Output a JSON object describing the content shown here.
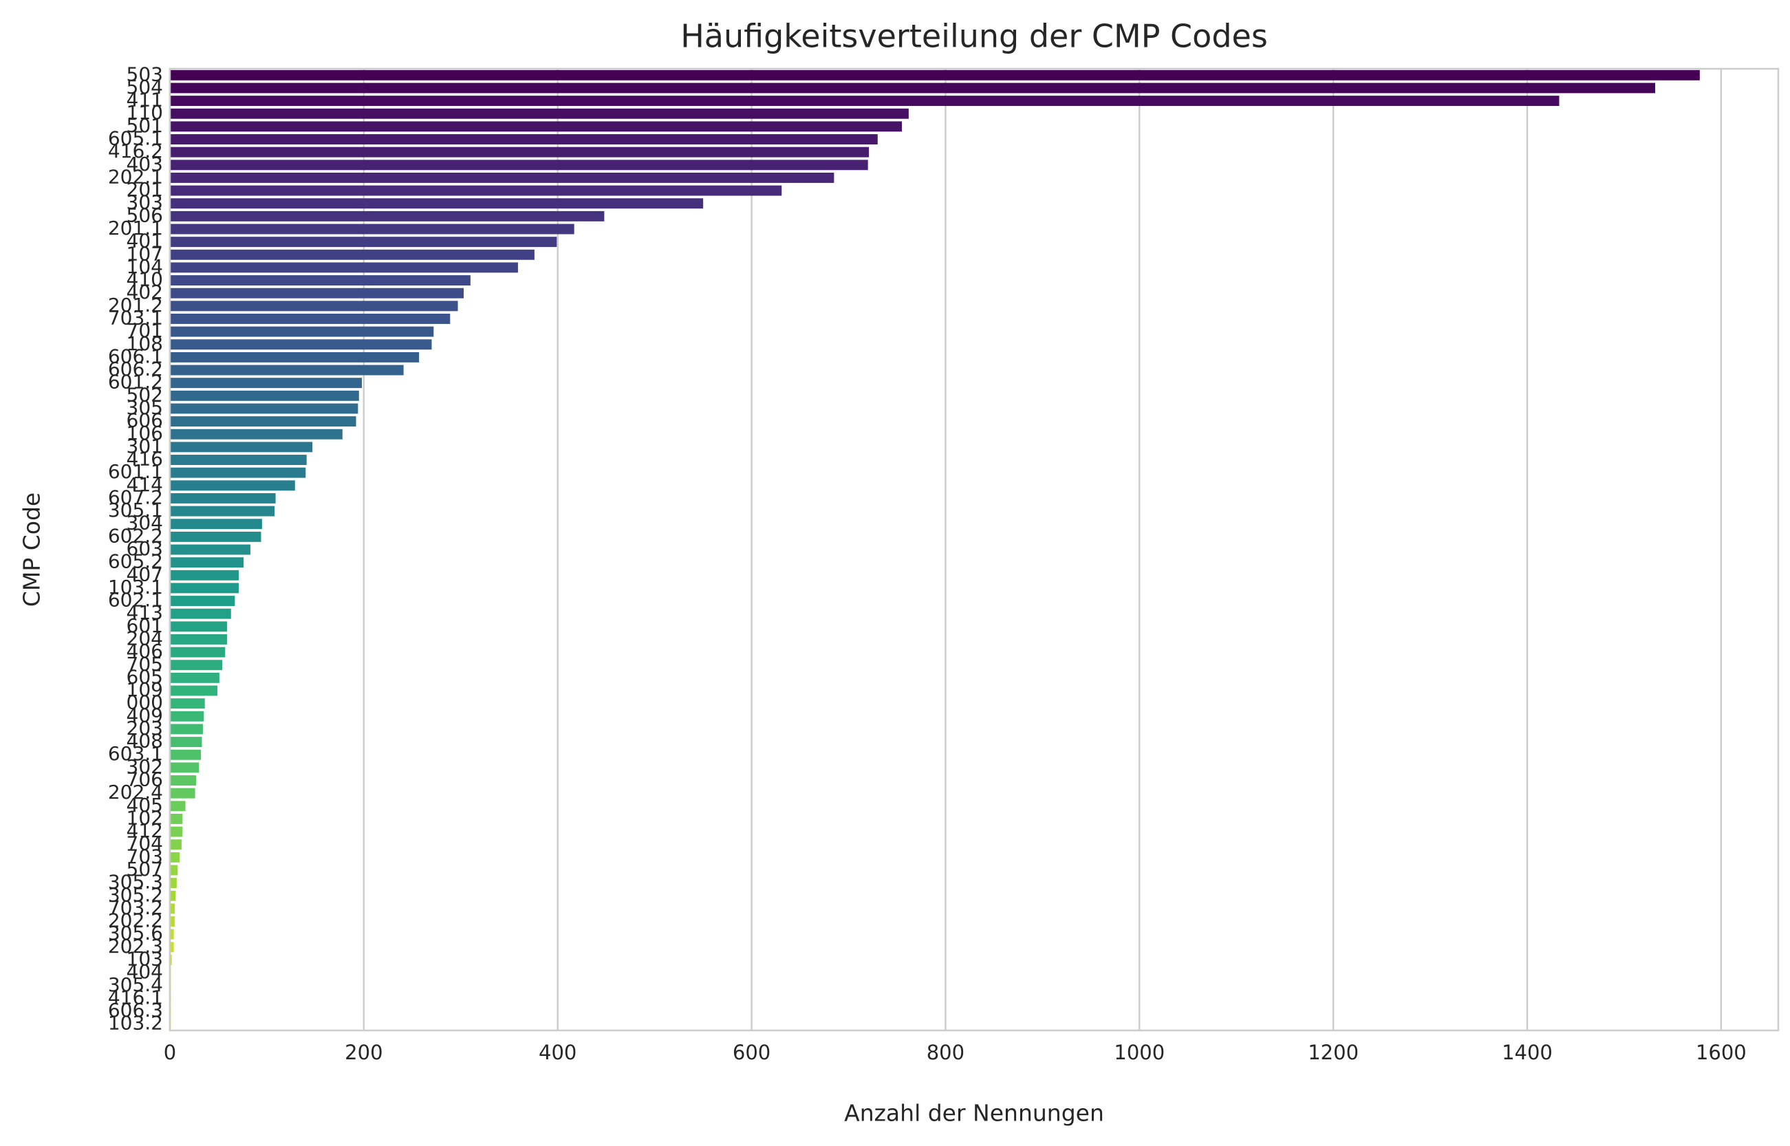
{
  "chart_data": {
    "type": "barh",
    "title": "Häufigkeitsverteilung der CMP Codes",
    "x_label": "Anzahl der Nennungen",
    "y_label": "CMP Code",
    "palette": "viridis",
    "categories": [
      "503",
      "504",
      "411",
      "110",
      "501",
      "605.1",
      "416.2",
      "403",
      "202.1",
      "201",
      "303",
      "506",
      "201.1",
      "401",
      "107",
      "104",
      "410",
      "402",
      "201.2",
      "703.1",
      "701",
      "108",
      "606.1",
      "606.2",
      "601.2",
      "502",
      "305",
      "606",
      "106",
      "301",
      "416",
      "601.1",
      "414",
      "607.2",
      "305.1",
      "304",
      "602.2",
      "603",
      "605.2",
      "407",
      "103.1",
      "602.1",
      "413",
      "601",
      "204",
      "406",
      "705",
      "605",
      "109",
      "000",
      "409",
      "203",
      "408",
      "603.1",
      "302",
      "706",
      "202.4",
      "405",
      "102",
      "412",
      "704",
      "703",
      "507",
      "305.3",
      "305.2",
      "703.2",
      "202.2",
      "305.6",
      "202.3",
      "103",
      "404",
      "305.4",
      "416.1",
      "606.3",
      "103.2"
    ],
    "values": [
      1578,
      1532,
      1433,
      762,
      755,
      730,
      721,
      720,
      685,
      631,
      550,
      448,
      417,
      399,
      376,
      359,
      310,
      303,
      297,
      289,
      272,
      270,
      257,
      241,
      198,
      195,
      194,
      192,
      178,
      147,
      141,
      140,
      129,
      109,
      108,
      95,
      94,
      83,
      76,
      71,
      71,
      67,
      63,
      59,
      59,
      57,
      54,
      51,
      49,
      36,
      35,
      34,
      33,
      32,
      30,
      27,
      26,
      16,
      13,
      13,
      12,
      10,
      8,
      7,
      6,
      5,
      5,
      4,
      4,
      2,
      1,
      1,
      1,
      1,
      1
    ],
    "xlim": [
      0,
      1659
    ],
    "xticks": [
      0,
      200,
      400,
      600,
      800,
      1000,
      1200,
      1400,
      1600
    ],
    "grid": true
  }
}
